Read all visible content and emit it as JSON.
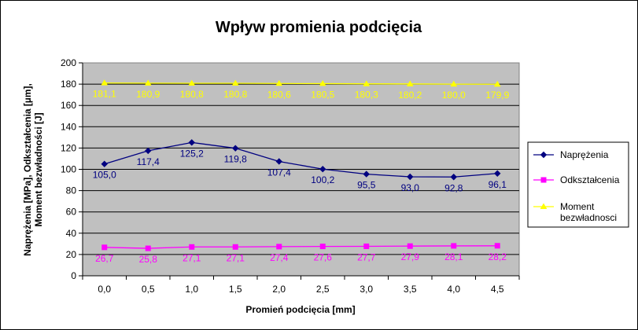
{
  "chart_data": {
    "type": "line",
    "title": "Wpływ promienia podcięcia",
    "xlabel": "Promień podcięcia [mm]",
    "ylabel_lines": [
      "Naprężenia [MPa], Odkształcenia [µm],",
      "Moment bezwładności [J]"
    ],
    "categories": [
      "0,0",
      "0,5",
      "1,0",
      "1,5",
      "2,0",
      "2,5",
      "3,0",
      "3,5",
      "4,0",
      "4,5"
    ],
    "ylim": [
      0,
      200
    ],
    "yticks": [
      "0",
      "20",
      "40",
      "60",
      "80",
      "100",
      "120",
      "140",
      "160",
      "180",
      "200"
    ],
    "grid": true,
    "legend_position": "right",
    "plot_background": "#c0c0c0",
    "series": [
      {
        "name": "Naprężenia",
        "color": "#000080",
        "marker": "diamond",
        "values": [
          105.0,
          117.4,
          125.2,
          119.8,
          107.4,
          100.2,
          95.5,
          93.0,
          92.8,
          96.1
        ],
        "labels": [
          "105,0",
          "117,4",
          "125,2",
          "119,8",
          "107,4",
          "100,2",
          "95,5",
          "93,0",
          "92,8",
          "96,1"
        ]
      },
      {
        "name": "Odkształcenia",
        "color": "#ff00ff",
        "marker": "square",
        "values": [
          26.7,
          25.8,
          27.1,
          27.1,
          27.4,
          27.6,
          27.7,
          27.9,
          28.1,
          28.2
        ],
        "labels": [
          "26,7",
          "25,8",
          "27,1",
          "27,1",
          "27,4",
          "27,6",
          "27,7",
          "27,9",
          "28,1",
          "28,2"
        ]
      },
      {
        "name": "Moment bezwładnosci",
        "legend_lines": [
          "Moment",
          "bezwładnosci"
        ],
        "color": "#ffff00",
        "marker": "triangle",
        "values": [
          181.1,
          180.9,
          180.8,
          180.8,
          180.6,
          180.5,
          180.3,
          180.2,
          180.0,
          179.9
        ],
        "labels": [
          "181,1",
          "180,9",
          "180,8",
          "180,8",
          "180,6",
          "180,5",
          "180,3",
          "180,2",
          "180,0",
          "179,9"
        ]
      }
    ]
  }
}
